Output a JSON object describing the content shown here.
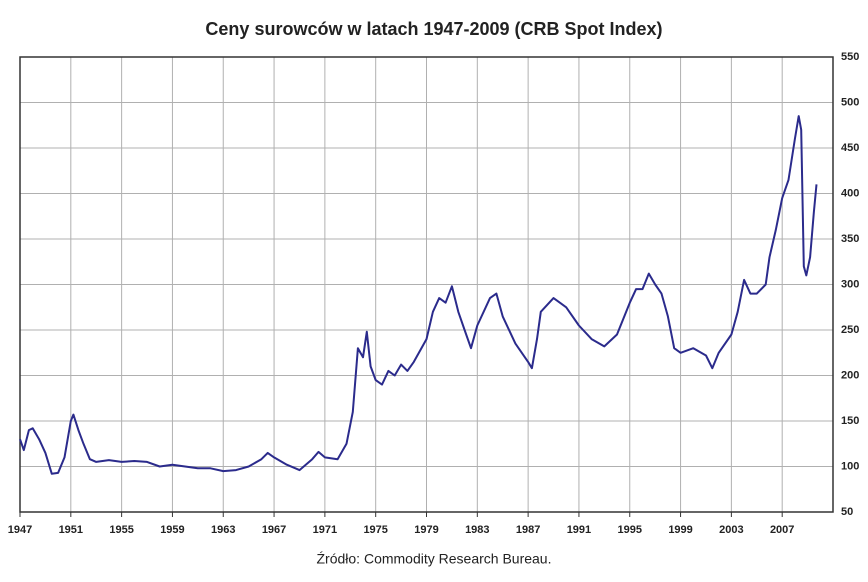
{
  "chart_data": {
    "type": "line",
    "title": "Ceny surowców w latach 1947-2009 (CRB Spot Index)",
    "source": "Źródło: Commodity Research Bureau.",
    "color": "#2b2b8c",
    "x": [
      1947.0,
      1947.3,
      1947.7,
      1948.0,
      1948.5,
      1949.0,
      1949.5,
      1950.0,
      1950.5,
      1951.0,
      1951.2,
      1951.6,
      1952.0,
      1952.5,
      1953,
      1954,
      1955,
      1956,
      1957,
      1958,
      1959,
      1960,
      1961,
      1962,
      1963,
      1964,
      1965,
      1966,
      1966.5,
      1967,
      1968,
      1969,
      1970,
      1970.5,
      1971,
      1972,
      1972.7,
      1973.2,
      1973.6,
      1974.0,
      1974.3,
      1974.6,
      1975,
      1975.5,
      1976,
      1976.5,
      1977,
      1977.5,
      1978,
      1979,
      1979.5,
      1980,
      1980.5,
      1981,
      1981.5,
      1982,
      1982.5,
      1983,
      1984,
      1984.5,
      1985,
      1986,
      1987,
      1987.3,
      1987.7,
      1988,
      1989,
      1989.5,
      1990,
      1991,
      1992,
      1993,
      1994,
      1995,
      1995.5,
      1996,
      1996.5,
      1997,
      1997.5,
      1998,
      1998.5,
      1999,
      2000,
      2001,
      2001.5,
      2002,
      2003,
      2003.5,
      2004,
      2004.5,
      2005,
      2005.7,
      2006,
      2006.5,
      2007,
      2007.5,
      2008.0,
      2008.3,
      2008.5,
      2008.7,
      2008.9,
      2009.2,
      2009.5,
      2009.7
    ],
    "values": [
      130,
      118,
      140,
      142,
      130,
      115,
      92,
      93,
      110,
      150,
      157,
      140,
      125,
      108,
      105,
      107,
      105,
      106,
      105,
      100,
      102,
      100,
      98,
      98,
      95,
      96,
      100,
      108,
      115,
      110,
      102,
      96,
      108,
      116,
      110,
      108,
      125,
      160,
      230,
      220,
      248,
      210,
      195,
      190,
      205,
      200,
      212,
      205,
      215,
      240,
      270,
      285,
      280,
      298,
      270,
      250,
      230,
      255,
      285,
      290,
      265,
      235,
      215,
      208,
      240,
      270,
      285,
      280,
      275,
      255,
      240,
      232,
      245,
      280,
      295,
      295,
      312,
      300,
      290,
      265,
      230,
      225,
      230,
      222,
      208,
      225,
      245,
      270,
      305,
      290,
      290,
      300,
      330,
      360,
      395,
      415,
      460,
      485,
      470,
      320,
      310,
      330,
      380,
      410
    ],
    "xlim": [
      1947,
      2011
    ],
    "xticks": [
      1947,
      1951,
      1955,
      1959,
      1963,
      1967,
      1971,
      1975,
      1979,
      1983,
      1987,
      1991,
      1995,
      1999,
      2003,
      2007
    ],
    "ylim": [
      50,
      550
    ],
    "yticks": [
      50,
      100,
      150,
      200,
      250,
      300,
      350,
      400,
      450,
      500,
      550
    ],
    "grid": true
  }
}
